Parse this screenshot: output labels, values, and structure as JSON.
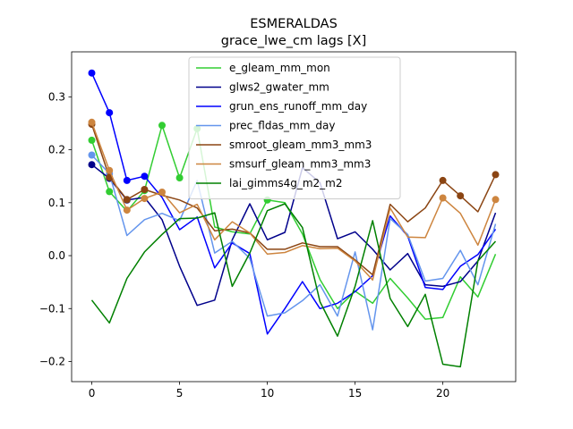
{
  "chart_data": {
    "type": "line",
    "title": "ESMERALDAS",
    "subtitle": "grace_lwe_cm lags [X]",
    "xlabel": "",
    "ylabel": "",
    "xlim": [
      -1.15,
      24.15
    ],
    "ylim": [
      -0.238,
      0.385
    ],
    "xticks": [
      0,
      5,
      10,
      15,
      20
    ],
    "yticks": [
      -0.2,
      -0.1,
      0.0,
      0.1,
      0.2,
      0.3
    ],
    "ytick_labels": [
      "−0.2",
      "−0.1",
      "0.0",
      "0.1",
      "0.2",
      "0.3"
    ],
    "grid": false,
    "legend_position": "top-center",
    "x": [
      0,
      1,
      2,
      3,
      4,
      5,
      6,
      7,
      8,
      9,
      10,
      11,
      12,
      13,
      14,
      15,
      16,
      17,
      18,
      19,
      20,
      21,
      22,
      23
    ],
    "series": [
      {
        "name": "e_gleam_mm_mon",
        "color": "#32cd32",
        "values": [
          0.218,
          0.121,
          0.084,
          0.123,
          0.246,
          0.147,
          0.24,
          0.054,
          0.045,
          0.041,
          0.105,
          0.1,
          0.041,
          -0.045,
          -0.1,
          -0.067,
          -0.09,
          -0.043,
          -0.08,
          -0.12,
          -0.117,
          -0.04,
          -0.078,
          0.003
        ],
        "markers": [
          0,
          1,
          3,
          4,
          5,
          6,
          10
        ]
      },
      {
        "name": "glws2_gwater_mm",
        "color": "#00008b",
        "values": [
          0.172,
          0.146,
          0.105,
          0.11,
          0.068,
          -0.02,
          -0.094,
          -0.084,
          0.03,
          0.098,
          0.03,
          0.044,
          0.166,
          0.138,
          0.032,
          0.045,
          0.012,
          -0.027,
          0.004,
          -0.055,
          -0.058,
          -0.049,
          -0.01,
          0.081
        ],
        "markers": [
          0,
          1,
          2
        ]
      },
      {
        "name": "grun_ens_runoff_mm_day",
        "color": "#0000ff",
        "values": [
          0.345,
          0.27,
          0.142,
          0.15,
          0.11,
          0.049,
          0.073,
          -0.023,
          0.024,
          0.004,
          -0.148,
          -0.1,
          -0.049,
          -0.1,
          -0.09,
          -0.068,
          -0.038,
          0.075,
          0.037,
          -0.06,
          -0.064,
          -0.02,
          0.002,
          0.05
        ],
        "markers": [
          0,
          1,
          2,
          3
        ]
      },
      {
        "name": "prec_fldas_mm_day",
        "color": "#6495ed",
        "values": [
          0.19,
          0.155,
          0.038,
          0.068,
          0.08,
          0.066,
          0.142,
          0.005,
          0.027,
          -0.005,
          -0.114,
          -0.108,
          -0.085,
          -0.055,
          -0.114,
          0.007,
          -0.14,
          0.07,
          0.04,
          -0.048,
          -0.043,
          0.01,
          -0.055,
          0.06
        ],
        "markers": [
          0,
          1
        ]
      },
      {
        "name": "smroot_gleam_mm3_mm3",
        "color": "#8b4513",
        "values": [
          0.248,
          0.148,
          0.106,
          0.125,
          0.114,
          0.105,
          0.09,
          0.047,
          0.05,
          0.043,
          0.012,
          0.012,
          0.024,
          0.017,
          0.017,
          -0.008,
          -0.036,
          0.097,
          0.064,
          0.09,
          0.142,
          0.113,
          0.083,
          0.153
        ],
        "markers": [
          0,
          1,
          2,
          3,
          20,
          21,
          23
        ]
      },
      {
        "name": "smsurf_gleam_mm3_mm3",
        "color": "#cd853f",
        "values": [
          0.252,
          0.161,
          0.086,
          0.108,
          0.12,
          0.081,
          0.097,
          0.03,
          0.064,
          0.043,
          0.003,
          0.006,
          0.019,
          0.013,
          0.014,
          -0.01,
          -0.046,
          0.09,
          0.035,
          0.034,
          0.109,
          0.08,
          0.02,
          0.106
        ],
        "markers": [
          0,
          1,
          2,
          3,
          4,
          20,
          23
        ]
      },
      {
        "name": "lai_gimms4g_m2_m2",
        "color": "#008000",
        "values": [
          -0.084,
          -0.127,
          -0.043,
          0.007,
          0.04,
          0.07,
          0.071,
          0.081,
          -0.058,
          0.005,
          0.085,
          0.098,
          0.053,
          -0.087,
          -0.152,
          -0.058,
          0.066,
          -0.081,
          -0.134,
          -0.073,
          -0.205,
          -0.21,
          -0.01,
          0.027
        ],
        "markers": []
      }
    ]
  }
}
